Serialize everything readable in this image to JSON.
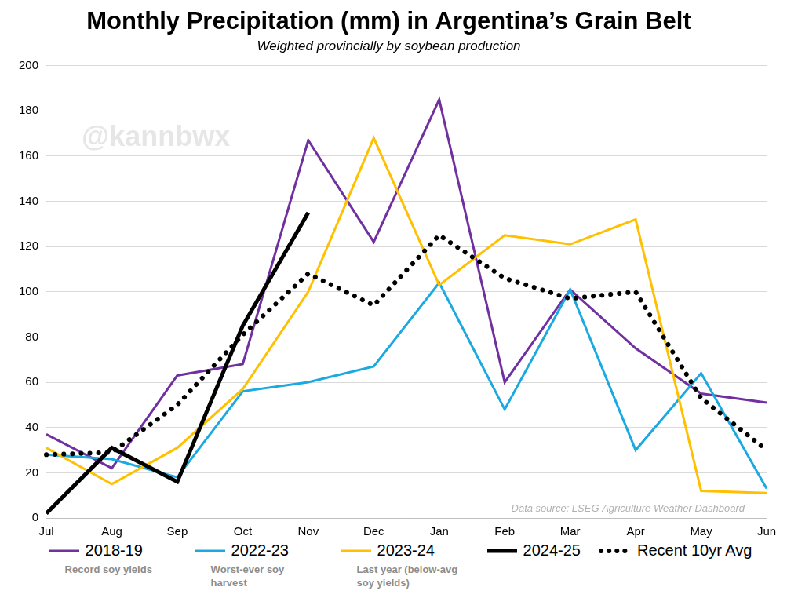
{
  "chart_data": {
    "type": "line",
    "title": "Monthly Precipitation (mm) in Argentina’s Grain Belt",
    "subtitle": "Weighted provincially by soybean production",
    "watermark": "@kannbwx",
    "source": "Data source: LSEG Agriculture Weather Dashboard",
    "categories": [
      "Jul",
      "Aug",
      "Sep",
      "Oct",
      "Nov",
      "Dec",
      "Jan",
      "Feb",
      "Mar",
      "Apr",
      "May",
      "Jun"
    ],
    "series": [
      {
        "name": "2018-19",
        "note": "Record soy yields",
        "color": "#7030a0",
        "line_style": "solid",
        "values": [
          37,
          22,
          63,
          68,
          167,
          122,
          185,
          60,
          101,
          75,
          55,
          51
        ]
      },
      {
        "name": "2022-23",
        "note": "Worst-ever soy harvest",
        "color": "#1ba9e1",
        "line_style": "solid",
        "values": [
          28,
          26,
          18,
          56,
          60,
          67,
          104,
          48,
          101,
          30,
          64,
          13
        ]
      },
      {
        "name": "2023-24",
        "note": "Last year (below-avg soy yields)",
        "color": "#ffc000",
        "line_style": "solid",
        "values": [
          31,
          15,
          31,
          57,
          100,
          168,
          103,
          125,
          121,
          132,
          12,
          11
        ]
      },
      {
        "name": "2024-25",
        "color": "#000000",
        "line_style": "solid",
        "values": [
          2,
          31,
          16,
          85,
          135,
          null,
          null,
          null,
          null,
          null,
          null,
          null
        ]
      },
      {
        "name": "Recent 10yr Avg",
        "color": "#000000",
        "line_style": "dotted",
        "values": [
          28,
          29,
          50,
          81,
          108,
          94,
          125,
          106,
          97,
          100,
          53,
          30
        ]
      }
    ],
    "ylim": [
      0,
      200
    ],
    "yticks": [
      0,
      20,
      40,
      60,
      80,
      100,
      120,
      140,
      160,
      180,
      200
    ],
    "grid": true,
    "legend": "bottom"
  }
}
